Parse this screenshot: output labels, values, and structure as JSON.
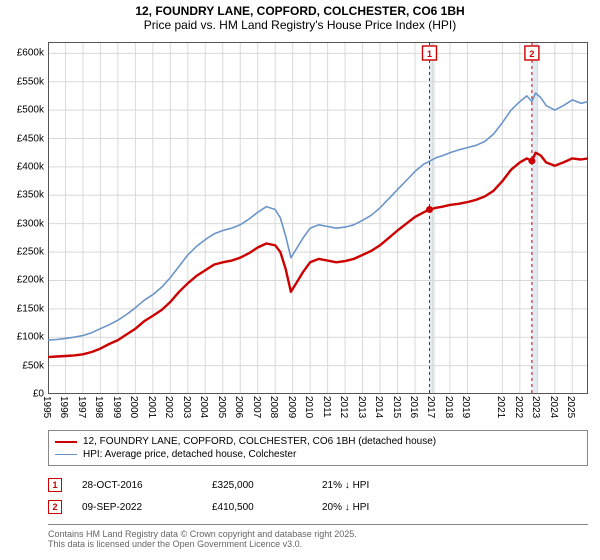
{
  "title_line1": "12, FOUNDRY LANE, COPFORD, COLCHESTER, CO6 1BH",
  "title_line2": "Price paid vs. HM Land Registry's House Price Index (HPI)",
  "chart": {
    "type": "line",
    "background_color": "#ffffff",
    "grid_color": "#d9d9d9",
    "axis_color": "#555555",
    "x_start": 1995,
    "x_end": 2025.9,
    "x_ticks": [
      1995,
      1996,
      1997,
      1998,
      1999,
      2000,
      2001,
      2002,
      2003,
      2004,
      2005,
      2006,
      2007,
      2008,
      2009,
      2010,
      2011,
      2012,
      2013,
      2014,
      2015,
      2016,
      2017,
      2018,
      2019,
      2021,
      2022,
      2023,
      2024,
      2025
    ],
    "ylim": [
      0,
      620000
    ],
    "y_ticks": [
      0,
      50000,
      100000,
      150000,
      200000,
      250000,
      300000,
      350000,
      400000,
      450000,
      500000,
      550000,
      600000
    ],
    "y_tick_labels": [
      "£0",
      "£50k",
      "£100k",
      "£150k",
      "£200k",
      "£250k",
      "£300k",
      "£350k",
      "£400k",
      "£450k",
      "£500k",
      "£550k",
      "£600k"
    ],
    "series": [
      {
        "name": "price_paid",
        "color": "#cc0000",
        "width": 2.4,
        "legend": "12, FOUNDRY LANE, COPFORD, COLCHESTER, CO6 1BH (detached house)",
        "points": [
          [
            1995.0,
            65000
          ],
          [
            1995.5,
            66000
          ],
          [
            1996.0,
            67000
          ],
          [
            1996.5,
            68000
          ],
          [
            1997.0,
            70000
          ],
          [
            1997.5,
            74000
          ],
          [
            1998.0,
            80000
          ],
          [
            1998.5,
            88000
          ],
          [
            1999.0,
            95000
          ],
          [
            1999.5,
            105000
          ],
          [
            2000.0,
            115000
          ],
          [
            2000.5,
            128000
          ],
          [
            2001.0,
            138000
          ],
          [
            2001.5,
            148000
          ],
          [
            2002.0,
            162000
          ],
          [
            2002.5,
            180000
          ],
          [
            2003.0,
            195000
          ],
          [
            2003.5,
            208000
          ],
          [
            2004.0,
            218000
          ],
          [
            2004.5,
            228000
          ],
          [
            2005.0,
            232000
          ],
          [
            2005.5,
            235000
          ],
          [
            2006.0,
            240000
          ],
          [
            2006.5,
            248000
          ],
          [
            2007.0,
            258000
          ],
          [
            2007.5,
            265000
          ],
          [
            2008.0,
            262000
          ],
          [
            2008.3,
            250000
          ],
          [
            2008.6,
            220000
          ],
          [
            2008.9,
            180000
          ],
          [
            2009.2,
            195000
          ],
          [
            2009.6,
            215000
          ],
          [
            2010.0,
            232000
          ],
          [
            2010.5,
            238000
          ],
          [
            2011.0,
            235000
          ],
          [
            2011.5,
            232000
          ],
          [
            2012.0,
            234000
          ],
          [
            2012.5,
            238000
          ],
          [
            2013.0,
            245000
          ],
          [
            2013.5,
            252000
          ],
          [
            2014.0,
            262000
          ],
          [
            2014.5,
            275000
          ],
          [
            2015.0,
            288000
          ],
          [
            2015.5,
            300000
          ],
          [
            2016.0,
            312000
          ],
          [
            2016.5,
            320000
          ],
          [
            2016.83,
            325000
          ],
          [
            2017.2,
            328000
          ],
          [
            2017.6,
            330000
          ],
          [
            2018.0,
            333000
          ],
          [
            2018.5,
            335000
          ],
          [
            2019.0,
            338000
          ],
          [
            2019.5,
            342000
          ],
          [
            2020.0,
            348000
          ],
          [
            2020.5,
            358000
          ],
          [
            2021.0,
            375000
          ],
          [
            2021.5,
            395000
          ],
          [
            2022.0,
            408000
          ],
          [
            2022.4,
            415000
          ],
          [
            2022.69,
            410500
          ],
          [
            2022.9,
            425000
          ],
          [
            2023.2,
            420000
          ],
          [
            2023.5,
            408000
          ],
          [
            2024.0,
            402000
          ],
          [
            2024.5,
            408000
          ],
          [
            2025.0,
            415000
          ],
          [
            2025.5,
            413000
          ],
          [
            2025.9,
            415000
          ]
        ]
      },
      {
        "name": "hpi",
        "color": "#6b95c9",
        "width": 1.6,
        "legend": "HPI: Average price, detached house, Colchester",
        "points": [
          [
            1995.0,
            95000
          ],
          [
            1995.5,
            96000
          ],
          [
            1996.0,
            98000
          ],
          [
            1996.5,
            100000
          ],
          [
            1997.0,
            103000
          ],
          [
            1997.5,
            108000
          ],
          [
            1998.0,
            115000
          ],
          [
            1998.5,
            122000
          ],
          [
            1999.0,
            130000
          ],
          [
            1999.5,
            140000
          ],
          [
            2000.0,
            152000
          ],
          [
            2000.5,
            165000
          ],
          [
            2001.0,
            175000
          ],
          [
            2001.5,
            188000
          ],
          [
            2002.0,
            205000
          ],
          [
            2002.5,
            225000
          ],
          [
            2003.0,
            245000
          ],
          [
            2003.5,
            260000
          ],
          [
            2004.0,
            272000
          ],
          [
            2004.5,
            282000
          ],
          [
            2005.0,
            288000
          ],
          [
            2005.5,
            292000
          ],
          [
            2006.0,
            298000
          ],
          [
            2006.5,
            308000
          ],
          [
            2007.0,
            320000
          ],
          [
            2007.5,
            330000
          ],
          [
            2008.0,
            325000
          ],
          [
            2008.3,
            310000
          ],
          [
            2008.6,
            278000
          ],
          [
            2008.9,
            240000
          ],
          [
            2009.2,
            255000
          ],
          [
            2009.6,
            275000
          ],
          [
            2010.0,
            292000
          ],
          [
            2010.5,
            298000
          ],
          [
            2011.0,
            295000
          ],
          [
            2011.5,
            292000
          ],
          [
            2012.0,
            294000
          ],
          [
            2012.5,
            298000
          ],
          [
            2013.0,
            306000
          ],
          [
            2013.5,
            315000
          ],
          [
            2014.0,
            328000
          ],
          [
            2014.5,
            344000
          ],
          [
            2015.0,
            360000
          ],
          [
            2015.5,
            376000
          ],
          [
            2016.0,
            392000
          ],
          [
            2016.5,
            405000
          ],
          [
            2016.83,
            410000
          ],
          [
            2017.2,
            416000
          ],
          [
            2017.6,
            420000
          ],
          [
            2018.0,
            425000
          ],
          [
            2018.5,
            430000
          ],
          [
            2019.0,
            434000
          ],
          [
            2019.5,
            438000
          ],
          [
            2020.0,
            445000
          ],
          [
            2020.5,
            458000
          ],
          [
            2021.0,
            478000
          ],
          [
            2021.5,
            500000
          ],
          [
            2022.0,
            515000
          ],
          [
            2022.4,
            525000
          ],
          [
            2022.69,
            515000
          ],
          [
            2022.9,
            530000
          ],
          [
            2023.2,
            522000
          ],
          [
            2023.5,
            508000
          ],
          [
            2024.0,
            500000
          ],
          [
            2024.5,
            508000
          ],
          [
            2025.0,
            518000
          ],
          [
            2025.5,
            512000
          ],
          [
            2025.9,
            515000
          ]
        ]
      }
    ],
    "sale_markers": [
      {
        "num": "1",
        "x": 2016.83,
        "shade_end": 2017.15
      },
      {
        "num": "2",
        "x": 2022.69,
        "shade_end": 2023.05
      }
    ],
    "marker_line_color": "#cc0000",
    "shade_color": "#d6e2f0"
  },
  "sales": [
    {
      "marker": "1",
      "date": "28-OCT-2016",
      "price": "£325,000",
      "diff": "21% ↓ HPI"
    },
    {
      "marker": "2",
      "date": "09-SEP-2022",
      "price": "£410,500",
      "diff": "20% ↓ HPI"
    }
  ],
  "footer_line1": "Contains HM Land Registry data © Crown copyright and database right 2025.",
  "footer_line2": "This data is licensed under the Open Government Licence v3.0."
}
